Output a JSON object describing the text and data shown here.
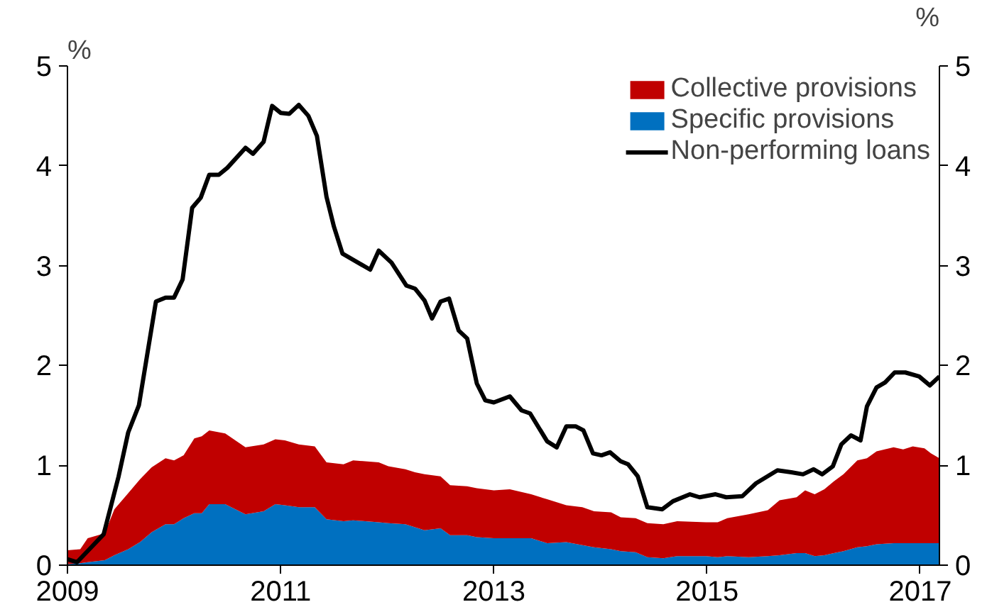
{
  "chart_data": {
    "type": "area",
    "stacked": true,
    "ylabel": "%",
    "y2label": "%",
    "x": [
      2009.0,
      2009.12,
      2009.19,
      2009.35,
      2009.44,
      2009.57,
      2009.68,
      2009.79,
      2009.92,
      2010.0,
      2010.09,
      2010.19,
      2010.26,
      2010.33,
      2010.48,
      2010.67,
      2010.84,
      2010.95,
      2011.04,
      2011.17,
      2011.32,
      2011.43,
      2011.59,
      2011.68,
      2011.92,
      2012.01,
      2012.17,
      2012.26,
      2012.35,
      2012.5,
      2012.59,
      2012.75,
      2012.84,
      2013.0,
      2013.15,
      2013.35,
      2013.5,
      2013.68,
      2013.83,
      2013.94,
      2014.1,
      2014.19,
      2014.33,
      2014.44,
      2014.59,
      2014.72,
      2014.99,
      2015.1,
      2015.19,
      2015.39,
      2015.57,
      2015.68,
      2015.84,
      2015.92,
      2016.01,
      2016.1,
      2016.19,
      2016.28,
      2016.41,
      2016.5,
      2016.59,
      2016.75,
      2016.84,
      2016.93,
      2017.04,
      2017.1,
      2017.18
    ],
    "series": [
      {
        "name": "Specific provisions",
        "color": "#0070c0",
        "values": [
          0.01,
          0.02,
          0.03,
          0.05,
          0.1,
          0.16,
          0.23,
          0.33,
          0.41,
          0.41,
          0.47,
          0.52,
          0.52,
          0.61,
          0.61,
          0.51,
          0.54,
          0.61,
          0.6,
          0.58,
          0.58,
          0.46,
          0.44,
          0.45,
          0.43,
          0.42,
          0.41,
          0.38,
          0.35,
          0.37,
          0.3,
          0.3,
          0.28,
          0.27,
          0.27,
          0.27,
          0.22,
          0.23,
          0.2,
          0.18,
          0.16,
          0.14,
          0.13,
          0.08,
          0.07,
          0.09,
          0.09,
          0.08,
          0.09,
          0.08,
          0.09,
          0.1,
          0.12,
          0.12,
          0.09,
          0.1,
          0.12,
          0.14,
          0.18,
          0.19,
          0.21,
          0.22,
          0.22,
          0.22,
          0.22,
          0.22,
          0.22
        ]
      },
      {
        "name": "Collective provisions",
        "color": "#c00000",
        "values": [
          0.14,
          0.14,
          0.24,
          0.27,
          0.46,
          0.56,
          0.63,
          0.65,
          0.66,
          0.64,
          0.63,
          0.75,
          0.77,
          0.74,
          0.71,
          0.67,
          0.67,
          0.65,
          0.65,
          0.63,
          0.61,
          0.57,
          0.57,
          0.6,
          0.6,
          0.57,
          0.55,
          0.55,
          0.56,
          0.52,
          0.5,
          0.49,
          0.49,
          0.48,
          0.49,
          0.44,
          0.44,
          0.37,
          0.38,
          0.36,
          0.37,
          0.34,
          0.34,
          0.34,
          0.34,
          0.35,
          0.34,
          0.35,
          0.38,
          0.43,
          0.46,
          0.55,
          0.56,
          0.63,
          0.62,
          0.66,
          0.72,
          0.77,
          0.87,
          0.88,
          0.93,
          0.96,
          0.94,
          0.97,
          0.95,
          0.9,
          0.85
        ]
      },
      {
        "name": "Non-performing loans",
        "type": "line",
        "color": "#000000",
        "x": [
          2009.0,
          2009.09,
          2009.26,
          2009.34,
          2009.48,
          2009.57,
          2009.67,
          2009.83,
          2009.92,
          2010.0,
          2010.08,
          2010.17,
          2010.25,
          2010.33,
          2010.42,
          2010.5,
          2010.67,
          2010.74,
          2010.84,
          2010.92,
          2011.0,
          2011.08,
          2011.17,
          2011.26,
          2011.34,
          2011.43,
          2011.5,
          2011.58,
          2011.84,
          2011.92,
          2012.04,
          2012.18,
          2012.26,
          2012.35,
          2012.42,
          2012.5,
          2012.58,
          2012.67,
          2012.75,
          2012.84,
          2012.92,
          2013.0,
          2013.15,
          2013.26,
          2013.34,
          2013.5,
          2013.59,
          2013.68,
          2013.77,
          2013.84,
          2013.93,
          2014.01,
          2014.09,
          2014.19,
          2014.26,
          2014.35,
          2014.44,
          2014.58,
          2014.68,
          2014.84,
          2014.93,
          2015.08,
          2015.18,
          2015.33,
          2015.46,
          2015.66,
          2015.79,
          2015.9,
          2016.0,
          2016.08,
          2016.18,
          2016.26,
          2016.35,
          2016.44,
          2016.5,
          2016.59,
          2016.67,
          2016.76,
          2016.86,
          2016.99,
          2017.09,
          2017.18
        ],
        "values": [
          0.06,
          0.03,
          0.22,
          0.31,
          0.89,
          1.33,
          1.6,
          2.64,
          2.68,
          2.68,
          2.86,
          3.58,
          3.68,
          3.91,
          3.91,
          3.98,
          4.18,
          4.12,
          4.24,
          4.6,
          4.53,
          4.52,
          4.61,
          4.5,
          4.3,
          3.69,
          3.39,
          3.12,
          2.96,
          3.15,
          3.03,
          2.8,
          2.77,
          2.65,
          2.47,
          2.64,
          2.67,
          2.35,
          2.27,
          1.82,
          1.65,
          1.63,
          1.69,
          1.55,
          1.52,
          1.24,
          1.18,
          1.39,
          1.39,
          1.35,
          1.12,
          1.1,
          1.13,
          1.04,
          1.01,
          0.89,
          0.58,
          0.56,
          0.64,
          0.71,
          0.68,
          0.71,
          0.68,
          0.69,
          0.82,
          0.95,
          0.93,
          0.91,
          0.96,
          0.91,
          0.99,
          1.21,
          1.3,
          1.25,
          1.59,
          1.78,
          1.83,
          1.93,
          1.93,
          1.89,
          1.8,
          1.89
        ]
      }
    ],
    "xlim": [
      2009,
      2017.18
    ],
    "xticks": [
      2009,
      2011,
      2013,
      2015,
      2017
    ],
    "ylim": [
      0,
      5
    ],
    "yticks": [
      0,
      1,
      2,
      3,
      4,
      5
    ],
    "y2lim": [
      0,
      5
    ],
    "y2ticks": [
      0,
      1,
      2,
      3,
      4,
      5
    ],
    "grid": false,
    "legend": "top right",
    "line_style": "solid",
    "marker": "none"
  }
}
